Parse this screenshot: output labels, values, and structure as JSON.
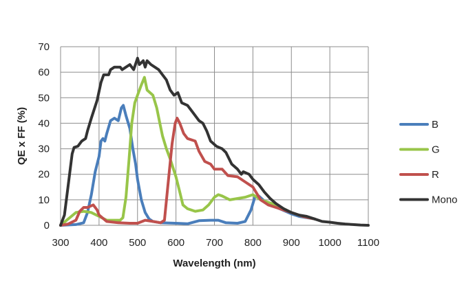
{
  "chart_data": {
    "type": "line",
    "title": "",
    "xlabel": "Wavelength (nm)",
    "ylabel": "QE x FF (%)",
    "xlim": [
      300,
      1100
    ],
    "ylim": [
      0,
      70
    ],
    "x_ticks": [
      300,
      400,
      500,
      600,
      700,
      800,
      900,
      1000,
      1100
    ],
    "y_ticks": [
      0,
      10,
      20,
      30,
      40,
      50,
      60,
      70
    ],
    "grid": true,
    "legend_position": "right",
    "series": [
      {
        "name": "B",
        "color": "#4a7ebb",
        "points": [
          [
            300,
            0
          ],
          [
            340,
            0.3
          ],
          [
            360,
            1
          ],
          [
            370,
            5
          ],
          [
            380,
            12
          ],
          [
            390,
            21
          ],
          [
            400,
            27
          ],
          [
            405,
            33
          ],
          [
            410,
            34
          ],
          [
            415,
            33
          ],
          [
            420,
            36
          ],
          [
            430,
            41
          ],
          [
            440,
            42
          ],
          [
            450,
            41
          ],
          [
            458,
            46
          ],
          [
            463,
            47
          ],
          [
            470,
            43
          ],
          [
            480,
            38
          ],
          [
            488,
            30
          ],
          [
            495,
            24
          ],
          [
            500,
            18
          ],
          [
            510,
            10
          ],
          [
            520,
            5
          ],
          [
            530,
            2.5
          ],
          [
            540,
            1.5
          ],
          [
            560,
            1
          ],
          [
            600,
            0.8
          ],
          [
            630,
            0.6
          ],
          [
            660,
            1.8
          ],
          [
            690,
            2
          ],
          [
            710,
            2
          ],
          [
            730,
            1
          ],
          [
            760,
            0.8
          ],
          [
            780,
            1.5
          ],
          [
            795,
            6
          ],
          [
            805,
            11
          ],
          [
            815,
            11.5
          ],
          [
            830,
            9.5
          ],
          [
            850,
            8
          ],
          [
            870,
            6.5
          ],
          [
            900,
            4.5
          ],
          [
            920,
            3.5
          ],
          [
            940,
            3
          ],
          [
            960,
            2.5
          ]
        ]
      },
      {
        "name": "G",
        "color": "#98c549",
        "points": [
          [
            300,
            0
          ],
          [
            320,
            2.5
          ],
          [
            340,
            5
          ],
          [
            360,
            5.5
          ],
          [
            380,
            5
          ],
          [
            400,
            3.5
          ],
          [
            420,
            2
          ],
          [
            440,
            2
          ],
          [
            455,
            2
          ],
          [
            462,
            3
          ],
          [
            470,
            11
          ],
          [
            478,
            26
          ],
          [
            485,
            40
          ],
          [
            493,
            48
          ],
          [
            500,
            51
          ],
          [
            510,
            55
          ],
          [
            518,
            58
          ],
          [
            525,
            53
          ],
          [
            540,
            51
          ],
          [
            550,
            46
          ],
          [
            558,
            40
          ],
          [
            565,
            35
          ],
          [
            575,
            30
          ],
          [
            585,
            26
          ],
          [
            600,
            19
          ],
          [
            610,
            13
          ],
          [
            618,
            8
          ],
          [
            630,
            6.5
          ],
          [
            650,
            5.5
          ],
          [
            670,
            6
          ],
          [
            685,
            8
          ],
          [
            700,
            11
          ],
          [
            710,
            12
          ],
          [
            720,
            11.5
          ],
          [
            740,
            10
          ],
          [
            760,
            10.5
          ],
          [
            780,
            11
          ],
          [
            800,
            12
          ],
          [
            820,
            10
          ],
          [
            840,
            9
          ],
          [
            860,
            8
          ],
          [
            880,
            6.5
          ],
          [
            900,
            5
          ],
          [
            930,
            3.5
          ],
          [
            960,
            2.5
          ]
        ]
      },
      {
        "name": "R",
        "color": "#c0504d",
        "points": [
          [
            300,
            0
          ],
          [
            320,
            0.5
          ],
          [
            340,
            2
          ],
          [
            350,
            5.5
          ],
          [
            360,
            7
          ],
          [
            370,
            7
          ],
          [
            385,
            8
          ],
          [
            395,
            6
          ],
          [
            400,
            4
          ],
          [
            420,
            1.5
          ],
          [
            450,
            1
          ],
          [
            480,
            0.8
          ],
          [
            500,
            0.8
          ],
          [
            520,
            2
          ],
          [
            540,
            1.5
          ],
          [
            560,
            1
          ],
          [
            570,
            2
          ],
          [
            580,
            17
          ],
          [
            590,
            32
          ],
          [
            598,
            40
          ],
          [
            603,
            42
          ],
          [
            610,
            40
          ],
          [
            620,
            36
          ],
          [
            630,
            34
          ],
          [
            650,
            33
          ],
          [
            660,
            29
          ],
          [
            675,
            25
          ],
          [
            690,
            24
          ],
          [
            700,
            22
          ],
          [
            720,
            22
          ],
          [
            735,
            19.5
          ],
          [
            760,
            19
          ],
          [
            780,
            17
          ],
          [
            800,
            15
          ],
          [
            820,
            10
          ],
          [
            840,
            8
          ],
          [
            860,
            7
          ],
          [
            880,
            6
          ],
          [
            900,
            5
          ],
          [
            930,
            3.5
          ],
          [
            960,
            2.5
          ]
        ]
      },
      {
        "name": "Mono",
        "color": "#333333",
        "points": [
          [
            300,
            0
          ],
          [
            310,
            4
          ],
          [
            320,
            16
          ],
          [
            330,
            28
          ],
          [
            335,
            30.5
          ],
          [
            345,
            31
          ],
          [
            355,
            33
          ],
          [
            365,
            34
          ],
          [
            370,
            37
          ],
          [
            380,
            42
          ],
          [
            395,
            49
          ],
          [
            405,
            56
          ],
          [
            412,
            59
          ],
          [
            425,
            59
          ],
          [
            430,
            61
          ],
          [
            440,
            62
          ],
          [
            455,
            62
          ],
          [
            460,
            61
          ],
          [
            470,
            62
          ],
          [
            480,
            63
          ],
          [
            490,
            61
          ],
          [
            500,
            65.5
          ],
          [
            505,
            63
          ],
          [
            515,
            64.5
          ],
          [
            520,
            62
          ],
          [
            525,
            64.5
          ],
          [
            535,
            63
          ],
          [
            545,
            62
          ],
          [
            555,
            61
          ],
          [
            565,
            59
          ],
          [
            575,
            57
          ],
          [
            585,
            53
          ],
          [
            595,
            51
          ],
          [
            605,
            52
          ],
          [
            615,
            48
          ],
          [
            630,
            47
          ],
          [
            645,
            44
          ],
          [
            660,
            41
          ],
          [
            670,
            40
          ],
          [
            680,
            37
          ],
          [
            690,
            33
          ],
          [
            705,
            31
          ],
          [
            720,
            30
          ],
          [
            730,
            28.5
          ],
          [
            745,
            24
          ],
          [
            760,
            22
          ],
          [
            770,
            20
          ],
          [
            775,
            21
          ],
          [
            790,
            20
          ],
          [
            800,
            18
          ],
          [
            815,
            16
          ],
          [
            830,
            13
          ],
          [
            845,
            10.5
          ],
          [
            860,
            8.5
          ],
          [
            880,
            6.5
          ],
          [
            900,
            5
          ],
          [
            920,
            4
          ],
          [
            940,
            3.5
          ],
          [
            960,
            2.5
          ],
          [
            980,
            1.5
          ],
          [
            1000,
            1.2
          ],
          [
            1020,
            0.8
          ],
          [
            1040,
            0.5
          ],
          [
            1060,
            0.3
          ],
          [
            1080,
            0.1
          ],
          [
            1100,
            0
          ]
        ]
      }
    ]
  }
}
